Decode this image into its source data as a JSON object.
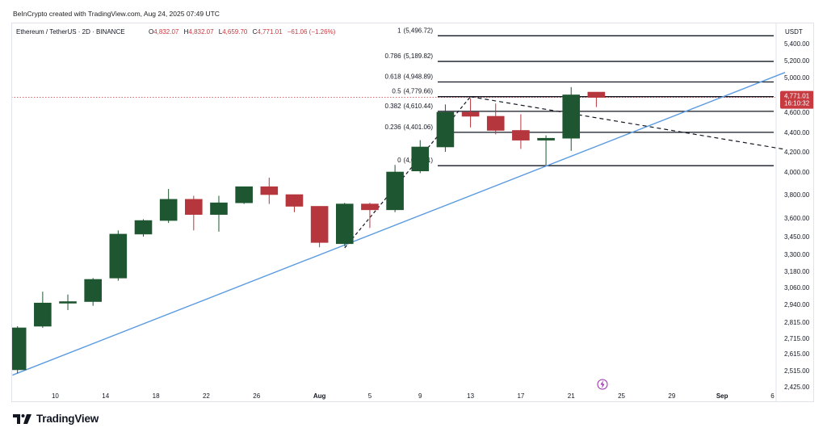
{
  "credit": "BeInCrypto created with TradingView.com, Aug 24, 2025 07:49 UTC",
  "brand": {
    "name": "TradingView"
  },
  "colors": {
    "up": "#1e5631",
    "down": "#b6363d",
    "trend": "#5b9be0",
    "fib": "#131722",
    "price_badge": "#c73a40"
  },
  "chart_data": {
    "type": "candlestick",
    "symbol": "Ethereum / TetherUS · 2D · BINANCE",
    "ohlc": {
      "o_label": "O",
      "o": "4,832.07",
      "h_label": "H",
      "h": "4,832.07",
      "l_label": "L",
      "l": "4,659.70",
      "c_label": "C",
      "c": "4,771.01",
      "change": "−61.06 (−1.26%)"
    },
    "currency": "USDT",
    "y_ticks": [
      "5,400.00",
      "5,200.00",
      "5,000.00",
      "4,600.00",
      "4,400.00",
      "4,200.00",
      "4,000.00",
      "3,800.00",
      "3,600.00",
      "3,450.00",
      "3,300.00",
      "3,180.00",
      "3,060.00",
      "2,940.00",
      "2,815.00",
      "2,715.00",
      "2,615.00",
      "2,515.00",
      "2,425.00"
    ],
    "y_tick_values": [
      5400,
      5200,
      5000,
      4600,
      4400,
      4200,
      4000,
      3800,
      3600,
      3450,
      3300,
      3180,
      3060,
      2940,
      2815,
      2715,
      2615,
      2515,
      2425
    ],
    "x_ticks": [
      {
        "label": "10",
        "day": 10,
        "bold": false
      },
      {
        "label": "14",
        "day": 14,
        "bold": false
      },
      {
        "label": "18",
        "day": 18,
        "bold": false
      },
      {
        "label": "22",
        "day": 22,
        "bold": false
      },
      {
        "label": "26",
        "day": 26,
        "bold": false
      },
      {
        "label": "Aug",
        "day": 31,
        "bold": true
      },
      {
        "label": "5",
        "day": 35,
        "bold": false
      },
      {
        "label": "9",
        "day": 39,
        "bold": false
      },
      {
        "label": "13",
        "day": 43,
        "bold": false
      },
      {
        "label": "17",
        "day": 47,
        "bold": false
      },
      {
        "label": "21",
        "day": 51,
        "bold": false
      },
      {
        "label": "25",
        "day": 55,
        "bold": false
      },
      {
        "label": "29",
        "day": 59,
        "bold": false
      },
      {
        "label": "Sep",
        "day": 63,
        "bold": true
      },
      {
        "label": "6",
        "day": 67,
        "bold": false
      }
    ],
    "candles": [
      {
        "day": 7,
        "o": 2520,
        "h": 2790,
        "l": 2500,
        "c": 2780
      },
      {
        "day": 9,
        "o": 2790,
        "h": 3030,
        "l": 2780,
        "c": 2950
      },
      {
        "day": 11,
        "o": 2950,
        "h": 3010,
        "l": 2900,
        "c": 2960
      },
      {
        "day": 13,
        "o": 2960,
        "h": 3130,
        "l": 2930,
        "c": 3120
      },
      {
        "day": 15,
        "o": 3130,
        "h": 3500,
        "l": 3110,
        "c": 3470
      },
      {
        "day": 17,
        "o": 3470,
        "h": 3590,
        "l": 3450,
        "c": 3580
      },
      {
        "day": 19,
        "o": 3580,
        "h": 3850,
        "l": 3560,
        "c": 3760
      },
      {
        "day": 21,
        "o": 3760,
        "h": 3790,
        "l": 3500,
        "c": 3630
      },
      {
        "day": 23,
        "o": 3630,
        "h": 3790,
        "l": 3490,
        "c": 3730
      },
      {
        "day": 25,
        "o": 3730,
        "h": 3870,
        "l": 3720,
        "c": 3870
      },
      {
        "day": 27,
        "o": 3870,
        "h": 3950,
        "l": 3720,
        "c": 3800
      },
      {
        "day": 29,
        "o": 3800,
        "h": 3800,
        "l": 3650,
        "c": 3700
      },
      {
        "day": 31,
        "o": 3700,
        "h": 3700,
        "l": 3360,
        "c": 3400
      },
      {
        "day": 33,
        "o": 3390,
        "h": 3730,
        "l": 3370,
        "c": 3720
      },
      {
        "day": 35,
        "o": 3720,
        "h": 3730,
        "l": 3520,
        "c": 3670
      },
      {
        "day": 37,
        "o": 3670,
        "h": 4070,
        "l": 3650,
        "c": 4000
      },
      {
        "day": 39,
        "o": 4010,
        "h": 4320,
        "l": 3990,
        "c": 4250
      },
      {
        "day": 41,
        "o": 4250,
        "h": 4690,
        "l": 4200,
        "c": 4600
      },
      {
        "day": 43,
        "o": 4600,
        "h": 4760,
        "l": 4450,
        "c": 4560
      },
      {
        "day": 45,
        "o": 4560,
        "h": 4700,
        "l": 4380,
        "c": 4420
      },
      {
        "day": 47,
        "o": 4420,
        "h": 4580,
        "l": 4230,
        "c": 4320
      },
      {
        "day": 49,
        "o": 4320,
        "h": 4370,
        "l": 4070,
        "c": 4340
      },
      {
        "day": 51,
        "o": 4340,
        "h": 4890,
        "l": 4210,
        "c": 4800
      },
      {
        "day": 53,
        "o": 4832,
        "h": 4832,
        "l": 4660,
        "c": 4771
      }
    ],
    "fib_levels": [
      {
        "ratio": "1",
        "price": "5,496.72",
        "value": 5496.72
      },
      {
        "ratio": "0.786",
        "price": "5,189.82",
        "value": 5189.82
      },
      {
        "ratio": "0.618",
        "price": "4,948.89",
        "value": 4948.89
      },
      {
        "ratio": "0.5",
        "price": "4,779.66",
        "value": 4779.66
      },
      {
        "ratio": "0.382",
        "price": "4,610.44",
        "value": 4610.44
      },
      {
        "ratio": "0.236",
        "price": "4,401.06",
        "value": 4401.06
      },
      {
        "ratio": "0",
        "price": "4,062.61",
        "value": 4062.61
      }
    ],
    "trendline": {
      "start": {
        "day": 6.6,
        "price": 2490
      },
      "end": {
        "day": 68,
        "price": 5060
      }
    },
    "descending_line": {
      "start": {
        "day": 43,
        "price": 4779
      },
      "end": {
        "day": 68,
        "price": 4225
      }
    },
    "swing_line": {
      "start": {
        "day": 33,
        "price": 3355
      },
      "end": {
        "day": 43,
        "price": 4779
      }
    },
    "last_price": {
      "value": 4771.01,
      "label": "4,771.01",
      "countdown": "16:10:32"
    }
  }
}
